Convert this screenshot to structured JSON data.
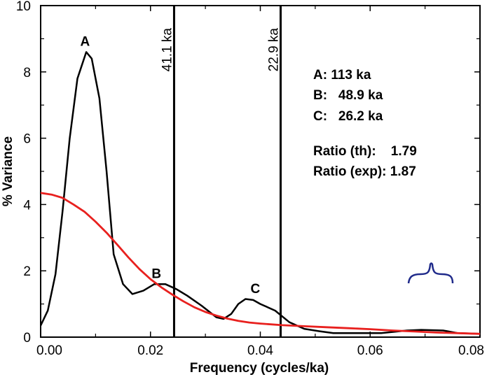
{
  "chart_data": {
    "type": "line",
    "xlabel": "Frequency (cycles/ka)",
    "ylabel": "% Variance",
    "xlim": [
      0,
      0.08
    ],
    "ylim": [
      0,
      10
    ],
    "x_ticks": [
      "0.00",
      "0.02",
      "0.04",
      "0.06",
      "0.08"
    ],
    "y_ticks": [
      "0",
      "2",
      "4",
      "6",
      "8",
      "10"
    ],
    "grid": false,
    "series": [
      {
        "color": "#000000",
        "points": [
          [
            0.0,
            0.35
          ],
          [
            0.0013,
            0.8
          ],
          [
            0.0027,
            1.9
          ],
          [
            0.004,
            3.8
          ],
          [
            0.0053,
            6.0
          ],
          [
            0.0067,
            7.8
          ],
          [
            0.0083,
            8.6
          ],
          [
            0.0093,
            8.4
          ],
          [
            0.0107,
            7.2
          ],
          [
            0.012,
            5.0
          ],
          [
            0.0133,
            2.5
          ],
          [
            0.015,
            1.6
          ],
          [
            0.0167,
            1.3
          ],
          [
            0.0187,
            1.4
          ],
          [
            0.0207,
            1.6
          ],
          [
            0.0227,
            1.6
          ],
          [
            0.0247,
            1.45
          ],
          [
            0.0267,
            1.25
          ],
          [
            0.0293,
            0.95
          ],
          [
            0.032,
            0.6
          ],
          [
            0.0333,
            0.55
          ],
          [
            0.0347,
            0.7
          ],
          [
            0.036,
            1.0
          ],
          [
            0.0373,
            1.15
          ],
          [
            0.0387,
            1.12
          ],
          [
            0.04,
            1.0
          ],
          [
            0.0427,
            0.8
          ],
          [
            0.0453,
            0.45
          ],
          [
            0.048,
            0.25
          ],
          [
            0.0507,
            0.18
          ],
          [
            0.0533,
            0.12
          ],
          [
            0.0573,
            0.12
          ],
          [
            0.062,
            0.12
          ],
          [
            0.0667,
            0.2
          ],
          [
            0.0693,
            0.22
          ],
          [
            0.0733,
            0.2
          ],
          [
            0.076,
            0.12
          ],
          [
            0.08,
            0.1
          ]
        ]
      },
      {
        "color": "#e8201e",
        "points": [
          [
            0.0,
            4.35
          ],
          [
            0.002,
            4.3
          ],
          [
            0.004,
            4.2
          ],
          [
            0.006,
            4.0
          ],
          [
            0.008,
            3.78
          ],
          [
            0.01,
            3.48
          ],
          [
            0.012,
            3.15
          ],
          [
            0.014,
            2.78
          ],
          [
            0.016,
            2.4
          ],
          [
            0.018,
            2.05
          ],
          [
            0.02,
            1.75
          ],
          [
            0.022,
            1.5
          ],
          [
            0.024,
            1.28
          ],
          [
            0.026,
            1.08
          ],
          [
            0.028,
            0.9
          ],
          [
            0.03,
            0.76
          ],
          [
            0.032,
            0.65
          ],
          [
            0.034,
            0.56
          ],
          [
            0.036,
            0.49
          ],
          [
            0.038,
            0.44
          ],
          [
            0.04,
            0.41
          ],
          [
            0.044,
            0.36
          ],
          [
            0.048,
            0.33
          ],
          [
            0.052,
            0.3
          ],
          [
            0.056,
            0.27
          ],
          [
            0.06,
            0.24
          ],
          [
            0.064,
            0.2
          ],
          [
            0.068,
            0.17
          ],
          [
            0.072,
            0.14
          ],
          [
            0.076,
            0.12
          ],
          [
            0.08,
            0.1
          ]
        ]
      }
    ],
    "vertical_lines": [
      {
        "x": 0.0243,
        "label": "41.1 ka"
      },
      {
        "x": 0.0437,
        "label": "22.9 ka"
      }
    ],
    "peak_labels": [
      {
        "text": "A",
        "x": 0.0077,
        "y": 8.7
      },
      {
        "text": "B",
        "x": 0.0207,
        "y": 1.7
      },
      {
        "text": "C",
        "x": 0.0387,
        "y": 1.25
      }
    ],
    "annotations": [
      {
        "text": "A: 113 ka"
      },
      {
        "text": "B:   48.9 ka"
      },
      {
        "text": "C:   26.2 ka"
      },
      {
        "text": "Ratio (th):    1.79"
      },
      {
        "text": "Ratio (exp): 1.87"
      }
    ],
    "brace_color": "#1f2a8a"
  }
}
